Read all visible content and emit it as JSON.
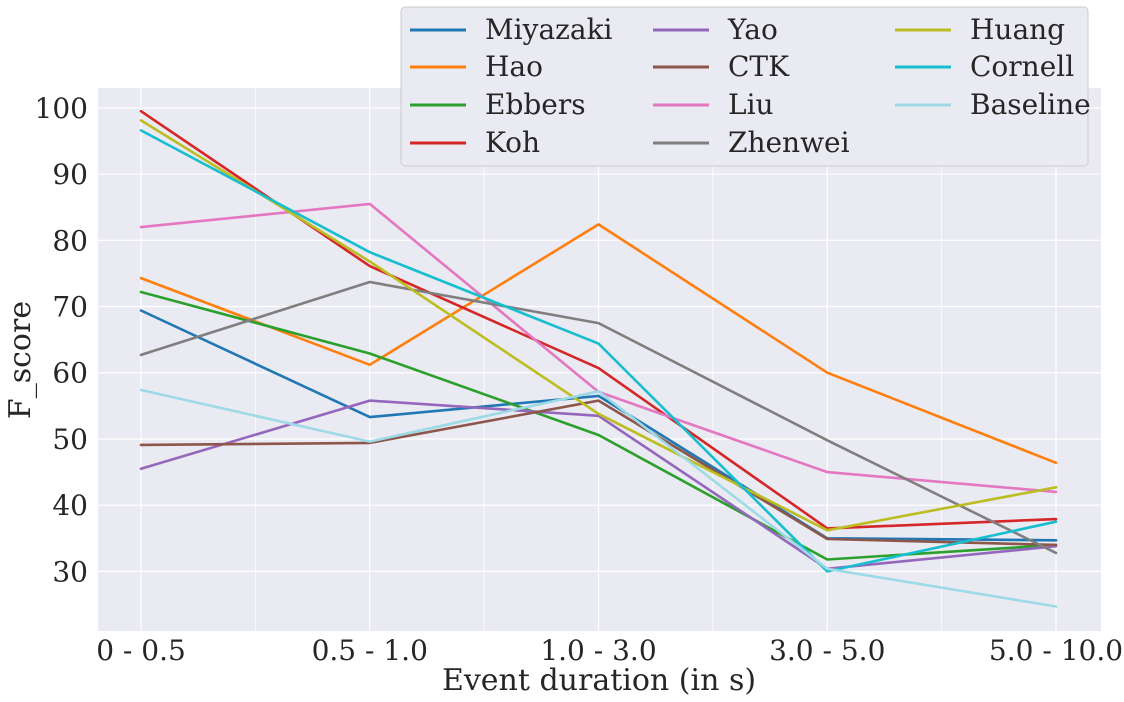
{
  "chart_data": {
    "type": "line",
    "title": "",
    "xlabel": "Event duration (in s)",
    "ylabel": "F_score",
    "categories": [
      "0 - 0.5",
      "0.5 - 1.0",
      "1.0 - 3.0",
      "3.0 - 5.0",
      "5.0 - 10.0"
    ],
    "ylim": [
      21,
      103
    ],
    "yticks": [
      30,
      40,
      50,
      60,
      70,
      80,
      90,
      100
    ],
    "grid": true,
    "legend_position": "top-right",
    "legend_columns": 3,
    "colors": {
      "background": "#eaeaf2",
      "grid": "#ffffff",
      "text": "#262626"
    },
    "series": [
      {
        "name": "Miyazaki",
        "color": "#1f77b4",
        "values": [
          69.4,
          53.3,
          56.5,
          35.0,
          34.7
        ]
      },
      {
        "name": "Hao",
        "color": "#ff7f0e",
        "values": [
          74.3,
          61.2,
          82.4,
          60.0,
          46.4
        ]
      },
      {
        "name": "Ebbers",
        "color": "#2ca02c",
        "values": [
          72.2,
          62.9,
          50.6,
          31.8,
          34.0
        ]
      },
      {
        "name": "Koh",
        "color": "#d62728",
        "values": [
          99.5,
          76.1,
          60.7,
          36.5,
          37.9
        ]
      },
      {
        "name": "Yao",
        "color": "#9467bd",
        "values": [
          45.5,
          55.8,
          53.5,
          30.4,
          33.8
        ]
      },
      {
        "name": "CTK",
        "color": "#8c564b",
        "values": [
          49.1,
          49.4,
          55.8,
          34.9,
          34.0
        ]
      },
      {
        "name": "Liu",
        "color": "#e377c2",
        "values": [
          82.0,
          85.5,
          57.1,
          45.0,
          42.0
        ]
      },
      {
        "name": "Zhenwei",
        "color": "#7f7f7f",
        "values": [
          62.7,
          73.7,
          67.5,
          49.8,
          32.8
        ]
      },
      {
        "name": "Huang",
        "color": "#bcbd22",
        "values": [
          98.1,
          76.8,
          53.8,
          36.2,
          42.7
        ]
      },
      {
        "name": "Cornell",
        "color": "#17becf",
        "values": [
          96.6,
          78.2,
          64.4,
          30.0,
          37.5
        ]
      },
      {
        "name": "Baseline",
        "color": "#9edae5",
        "values": [
          57.4,
          49.6,
          57.2,
          30.4,
          24.7
        ]
      }
    ]
  }
}
